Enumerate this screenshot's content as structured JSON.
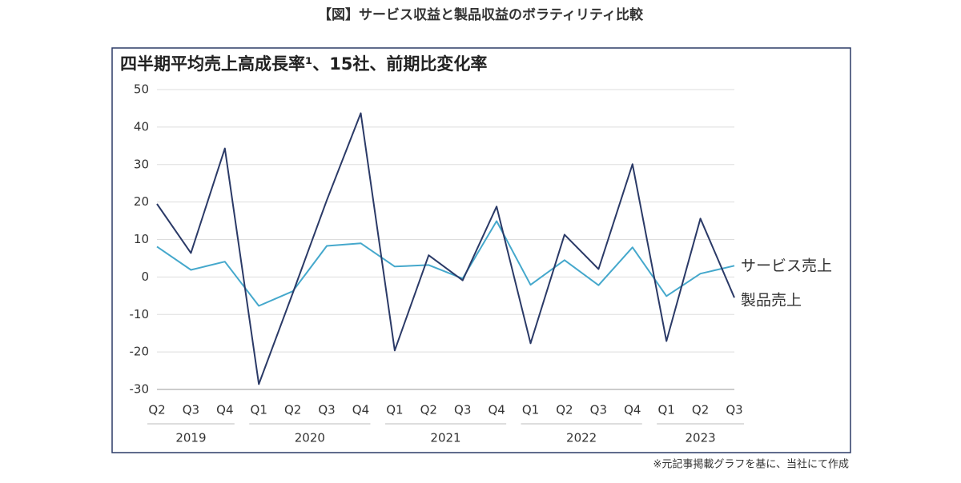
{
  "header": {
    "title": "【図】サービス収益と製品収益のボラティリティ比較"
  },
  "chart_data": {
    "type": "line",
    "title": "四半期平均売上高成長率¹、15社、前期比変化率",
    "categories": [
      "Q2",
      "Q3",
      "Q4",
      "Q1",
      "Q2",
      "Q3",
      "Q4",
      "Q1",
      "Q2",
      "Q3",
      "Q4",
      "Q1",
      "Q2",
      "Q3",
      "Q4",
      "Q1",
      "Q2",
      "Q3"
    ],
    "x_groups": [
      "2019",
      "2020",
      "2021",
      "2022",
      "2023"
    ],
    "series": [
      {
        "name": "サービス売上",
        "color": "#45a8cc",
        "values": [
          8.1,
          1.9,
          4.1,
          -7.7,
          -3.8,
          8.3,
          9.0,
          2.8,
          3.2,
          -0.4,
          14.9,
          -2.1,
          4.5,
          -2.2,
          7.9,
          -5.1,
          0.9,
          3.0
        ]
      },
      {
        "name": "製品売上",
        "color": "#2b3a67",
        "values": [
          19.5,
          6.4,
          34.3,
          -28.6,
          -4.3,
          20.5,
          43.7,
          -19.6,
          5.8,
          -0.9,
          18.8,
          -17.7,
          11.3,
          2.1,
          30.1,
          -17.1,
          15.6,
          -5.5
        ]
      }
    ],
    "ylim": [
      -30,
      50
    ],
    "yticks": [
      -30,
      -20,
      -10,
      0,
      10,
      20,
      30,
      40,
      50
    ],
    "grid": true
  },
  "footer": {
    "note": "※元記事掲載グラフを基に、当社にて作成"
  }
}
